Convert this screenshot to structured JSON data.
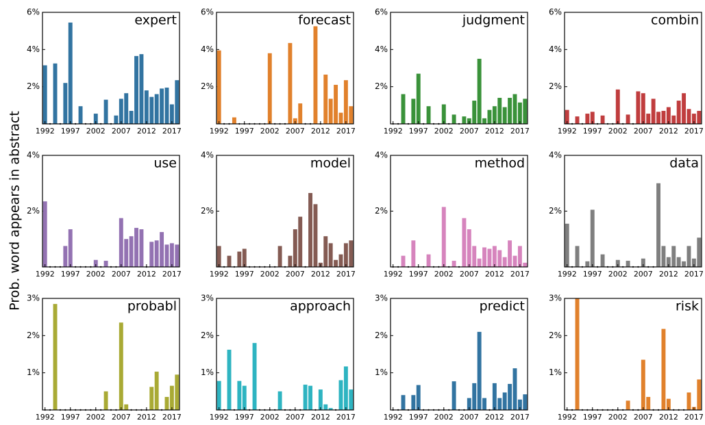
{
  "y_label": "Prob. word appears in abstract",
  "chart_data": [
    {
      "type": "bar",
      "title": "expert",
      "color": "#3274a1",
      "ylim": [
        0,
        6
      ],
      "yticks": [
        {
          "value": 2,
          "label": "2%"
        },
        {
          "value": 4,
          "label": "4%"
        },
        {
          "value": 6,
          "label": "6%"
        }
      ],
      "categories": [
        "1992",
        null,
        null,
        null,
        null,
        "1997",
        null,
        null,
        null,
        null,
        "2002",
        null,
        null,
        null,
        null,
        "2007",
        null,
        null,
        null,
        null,
        "2012",
        null,
        null,
        null,
        null,
        "2017",
        null
      ],
      "values": [
        3.15,
        0,
        3.25,
        0,
        2.2,
        5.45,
        0,
        0.95,
        0,
        0,
        0.55,
        0,
        1.3,
        0,
        0.45,
        1.35,
        1.65,
        0.7,
        3.65,
        3.75,
        1.8,
        1.45,
        1.6,
        1.9,
        1.95,
        1.05,
        2.35
      ]
    },
    {
      "type": "bar",
      "title": "forecast",
      "color": "#e1812c",
      "ylim": [
        0,
        6
      ],
      "yticks": [
        {
          "value": 2,
          "label": "2%"
        },
        {
          "value": 4,
          "label": "4%"
        },
        {
          "value": 6,
          "label": "6%"
        }
      ],
      "categories": [
        "1992",
        null,
        null,
        null,
        null,
        "1997",
        null,
        null,
        null,
        null,
        "2002",
        null,
        null,
        null,
        null,
        "2007",
        null,
        null,
        null,
        null,
        "2012",
        null,
        null,
        null,
        null,
        "2017",
        null
      ],
      "values": [
        3.95,
        0,
        0,
        0.35,
        0,
        0,
        0,
        0,
        0,
        0,
        3.8,
        0,
        0,
        0,
        4.35,
        0.3,
        1.1,
        0,
        0,
        5.25,
        0,
        2.65,
        1.35,
        2.1,
        0.6,
        2.35,
        0.95
      ]
    },
    {
      "type": "bar",
      "title": "judgment",
      "color": "#3a923a",
      "ylim": [
        0,
        6
      ],
      "yticks": [
        {
          "value": 2,
          "label": "2%"
        },
        {
          "value": 4,
          "label": "4%"
        },
        {
          "value": 6,
          "label": "6%"
        }
      ],
      "categories": [
        "1992",
        null,
        null,
        null,
        null,
        "1997",
        null,
        null,
        null,
        null,
        "2002",
        null,
        null,
        null,
        null,
        "2007",
        null,
        null,
        null,
        null,
        "2012",
        null,
        null,
        null,
        null,
        "2017",
        null
      ],
      "values": [
        0,
        0,
        1.6,
        0,
        1.35,
        2.7,
        0,
        0.95,
        0,
        0,
        1.05,
        0,
        0.5,
        0,
        0.4,
        0.3,
        1.25,
        3.5,
        0.3,
        0.75,
        0.95,
        1.4,
        0.9,
        1.4,
        1.6,
        1.15,
        1.35
      ]
    },
    {
      "type": "bar",
      "title": "combin",
      "color": "#c03d3e",
      "ylim": [
        0,
        6
      ],
      "yticks": [
        {
          "value": 2,
          "label": "2%"
        },
        {
          "value": 4,
          "label": "4%"
        },
        {
          "value": 6,
          "label": "6%"
        }
      ],
      "categories": [
        "1992",
        null,
        null,
        null,
        null,
        "1997",
        null,
        null,
        null,
        null,
        "2002",
        null,
        null,
        null,
        null,
        "2007",
        null,
        null,
        null,
        null,
        "2012",
        null,
        null,
        null,
        null,
        "2017",
        null
      ],
      "values": [
        0.75,
        0,
        0.4,
        0,
        0.55,
        0.65,
        0,
        0.45,
        0,
        0,
        1.85,
        0,
        0.5,
        0,
        1.75,
        1.65,
        0.55,
        1.35,
        0.65,
        0.7,
        0.9,
        0.45,
        1.25,
        1.65,
        0.8,
        0.55,
        0.7
      ]
    },
    {
      "type": "bar",
      "title": "use",
      "color": "#9372b2",
      "ylim": [
        0,
        4
      ],
      "yticks": [
        {
          "value": 2,
          "label": "2%"
        },
        {
          "value": 4,
          "label": "4%"
        }
      ],
      "categories": [
        "1992",
        null,
        null,
        null,
        null,
        "1997",
        null,
        null,
        null,
        null,
        "2002",
        null,
        null,
        null,
        null,
        "2007",
        null,
        null,
        null,
        null,
        "2012",
        null,
        null,
        null,
        null,
        "2017",
        null
      ],
      "values": [
        2.35,
        0,
        0,
        0,
        0.75,
        1.35,
        0,
        0,
        0,
        0,
        0.25,
        0,
        0.22,
        0,
        0,
        1.75,
        1.0,
        1.1,
        1.4,
        1.35,
        0,
        0.9,
        0.95,
        1.25,
        0.8,
        0.85,
        0.8
      ]
    },
    {
      "type": "bar",
      "title": "model",
      "color": "#845b53",
      "ylim": [
        0,
        4
      ],
      "yticks": [
        {
          "value": 2,
          "label": "2%"
        },
        {
          "value": 4,
          "label": "4%"
        }
      ],
      "categories": [
        "1992",
        null,
        null,
        null,
        null,
        "1997",
        null,
        null,
        null,
        null,
        "2002",
        null,
        null,
        null,
        null,
        "2007",
        null,
        null,
        null,
        null,
        "2012",
        null,
        null,
        null,
        null,
        "2017",
        null
      ],
      "values": [
        0.75,
        0,
        0.4,
        0,
        0.55,
        0.65,
        0,
        0,
        0,
        0,
        0,
        0,
        0.75,
        0,
        0.4,
        1.35,
        1.8,
        0,
        2.65,
        2.25,
        0.15,
        1.1,
        0.85,
        0.25,
        0.45,
        0.85,
        0.95
      ]
    },
    {
      "type": "bar",
      "title": "method",
      "color": "#d684bd",
      "ylim": [
        0,
        4
      ],
      "yticks": [
        {
          "value": 2,
          "label": "2%"
        },
        {
          "value": 4,
          "label": "4%"
        }
      ],
      "categories": [
        "1992",
        null,
        null,
        null,
        null,
        "1997",
        null,
        null,
        null,
        null,
        "2002",
        null,
        null,
        null,
        null,
        "2007",
        null,
        null,
        null,
        null,
        "2012",
        null,
        null,
        null,
        null,
        "2017",
        null
      ],
      "values": [
        0,
        0,
        0.4,
        0,
        0.95,
        0,
        0,
        0.45,
        0,
        0,
        2.15,
        0,
        0.22,
        0,
        1.75,
        1.35,
        0.75,
        0.3,
        0.7,
        0.65,
        0.75,
        0.6,
        0.35,
        0.95,
        0.4,
        0.75,
        0.15
      ]
    },
    {
      "type": "bar",
      "title": "data",
      "color": "#7f7f7f",
      "ylim": [
        0,
        4
      ],
      "yticks": [
        {
          "value": 2,
          "label": "2%"
        },
        {
          "value": 4,
          "label": "4%"
        }
      ],
      "categories": [
        "1992",
        null,
        null,
        null,
        null,
        "1997",
        null,
        null,
        null,
        null,
        "2002",
        null,
        null,
        null,
        null,
        "2007",
        null,
        null,
        null,
        null,
        "2012",
        null,
        null,
        null,
        null,
        "2017",
        null
      ],
      "values": [
        1.55,
        0,
        0.75,
        0,
        0.2,
        2.05,
        0,
        0.45,
        0,
        0,
        0.25,
        0,
        0.22,
        0,
        0,
        0.3,
        0,
        0,
        3.0,
        0.75,
        0.35,
        0.75,
        0.35,
        0.2,
        0.75,
        0.3,
        1.05
      ]
    },
    {
      "type": "bar",
      "title": "probabl",
      "color": "#a9aa35",
      "ylim": [
        0,
        3
      ],
      "yticks": [
        {
          "value": 1,
          "label": "1%"
        },
        {
          "value": 2,
          "label": "2%"
        },
        {
          "value": 3,
          "label": "3%"
        }
      ],
      "categories": [
        "1992",
        null,
        null,
        null,
        null,
        "1997",
        null,
        null,
        null,
        null,
        "2002",
        null,
        null,
        null,
        null,
        "2007",
        null,
        null,
        null,
        null,
        "2012",
        null,
        null,
        null,
        null,
        "2017",
        null
      ],
      "values": [
        0,
        0,
        2.85,
        0,
        0,
        0,
        0,
        0,
        0,
        0,
        0,
        0,
        0.5,
        0,
        0,
        2.35,
        0.15,
        0,
        0,
        0,
        0,
        0.62,
        1.03,
        0,
        0.35,
        0.65,
        0.95
      ]
    },
    {
      "type": "bar",
      "title": "approach",
      "color": "#2eb4c1",
      "ylim": [
        0,
        3
      ],
      "yticks": [
        {
          "value": 1,
          "label": "1%"
        },
        {
          "value": 2,
          "label": "2%"
        },
        {
          "value": 3,
          "label": "3%"
        }
      ],
      "categories": [
        "1992",
        null,
        null,
        null,
        null,
        "1997",
        null,
        null,
        null,
        null,
        "2002",
        null,
        null,
        null,
        null,
        "2007",
        null,
        null,
        null,
        null,
        "2012",
        null,
        null,
        null,
        null,
        "2017",
        null
      ],
      "values": [
        0.78,
        0,
        1.62,
        0,
        0.78,
        0.65,
        0,
        1.8,
        0,
        0,
        0,
        0,
        0.5,
        0,
        0,
        0,
        0,
        0.68,
        0.65,
        0,
        0.55,
        0.15,
        0.05,
        0,
        0.8,
        1.17,
        0.55
      ]
    },
    {
      "type": "bar",
      "title": "predict",
      "color": "#3274a1",
      "ylim": [
        0,
        3
      ],
      "yticks": [
        {
          "value": 1,
          "label": "1%"
        },
        {
          "value": 2,
          "label": "2%"
        },
        {
          "value": 3,
          "label": "3%"
        }
      ],
      "categories": [
        "1992",
        null,
        null,
        null,
        null,
        "1997",
        null,
        null,
        null,
        null,
        "2002",
        null,
        null,
        null,
        null,
        "2007",
        null,
        null,
        null,
        null,
        "2012",
        null,
        null,
        null,
        null,
        "2017",
        null
      ],
      "values": [
        0,
        0,
        0.4,
        0,
        0.4,
        0.67,
        0,
        0,
        0,
        0,
        0,
        0,
        0.77,
        0,
        0,
        0.32,
        0.72,
        2.1,
        0.32,
        0,
        0.72,
        0.32,
        0.47,
        0.7,
        1.12,
        0.28,
        0.42
      ]
    },
    {
      "type": "bar",
      "title": "risk",
      "color": "#e1812c",
      "ylim": [
        0,
        3
      ],
      "yticks": [
        {
          "value": 1,
          "label": "1%"
        },
        {
          "value": 2,
          "label": "2%"
        },
        {
          "value": 3,
          "label": "3%"
        }
      ],
      "categories": [
        "1992",
        null,
        null,
        null,
        null,
        "1997",
        null,
        null,
        null,
        null,
        "2002",
        null,
        null,
        null,
        null,
        "2007",
        null,
        null,
        null,
        null,
        "2012",
        null,
        null,
        null,
        null,
        "2017",
        null
      ],
      "values": [
        0,
        0,
        3.0,
        0,
        0,
        0,
        0,
        0,
        0,
        0,
        0,
        0,
        0.25,
        0,
        0,
        1.35,
        0.35,
        0,
        0,
        2.18,
        0.3,
        0,
        0,
        0,
        0.47,
        0.08,
        0.82
      ]
    }
  ]
}
